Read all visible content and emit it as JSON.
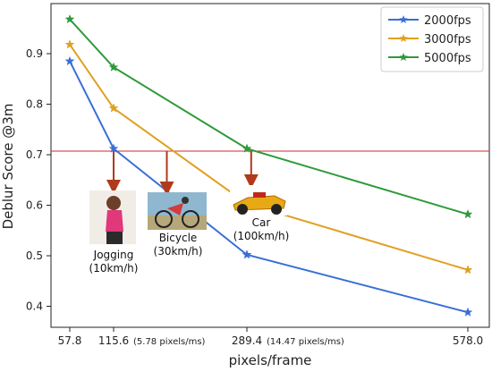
{
  "chart_data": {
    "type": "line",
    "xlabel": "pixels/frame",
    "ylabel": "Deblur Score @3m",
    "x": [
      57.8,
      115.6,
      289.4,
      578.0
    ],
    "x_tick_labels": [
      "57.8",
      "115.6",
      "289.4",
      "578.0"
    ],
    "x_tick_notes": {
      "115.6": "(5.78 pixels/ms)",
      "289.4": "(14.47 pixels/ms)"
    },
    "y_ticks": [
      0.4,
      0.5,
      0.6,
      0.7,
      0.8,
      0.9
    ],
    "ylim": [
      0.37,
      0.985
    ],
    "grid": false,
    "legend_position": "top-right",
    "threshold": {
      "value": 0.707,
      "color": "#d62728"
    },
    "series": [
      {
        "name": "2000fps",
        "color": "#3a6fd6",
        "values": [
          0.885,
          0.712,
          0.502,
          0.388
        ]
      },
      {
        "name": "3000fps",
        "color": "#e0a020",
        "values": [
          0.918,
          0.792,
          0.603,
          0.472
        ]
      },
      {
        "name": "5000fps",
        "color": "#2e9a3a",
        "values": [
          0.968,
          0.873,
          0.712,
          0.582
        ]
      }
    ],
    "annotations": [
      {
        "x": 115.6,
        "line1": "Jogging",
        "line2": "(10km/h)",
        "icon": "jogging-photo"
      },
      {
        "x": 185,
        "line1": "Bicycle",
        "line2": "(30km/h)",
        "icon": "bicycle-photo"
      },
      {
        "x": 295,
        "line1": "Car",
        "line2": "(100km/h)",
        "icon": "race-car-photo"
      }
    ],
    "arrow_color": "#b03a1a"
  }
}
